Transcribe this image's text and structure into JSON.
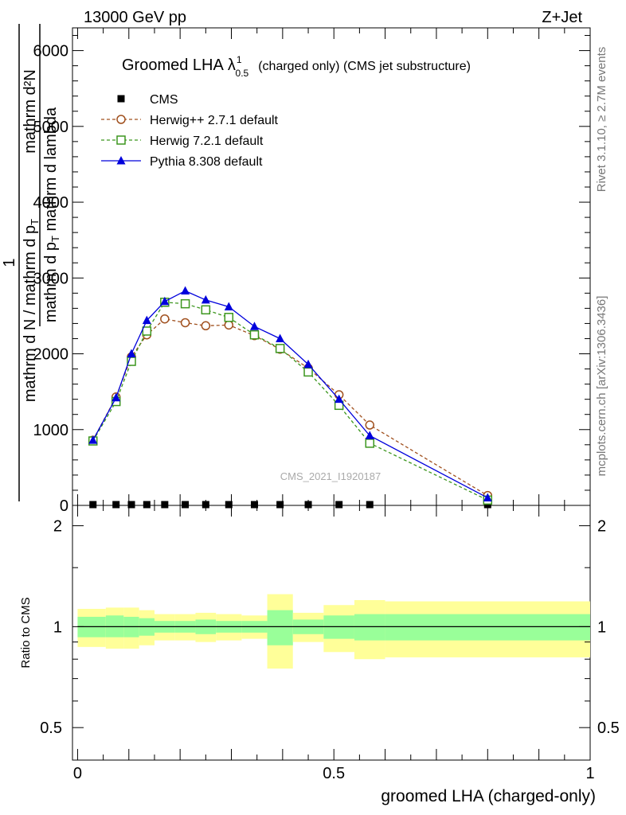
{
  "header": {
    "left_label": "13000 GeV pp",
    "right_label": "Z+Jet"
  },
  "side_labels": {
    "rivet": "Rivet 3.1.10, ≥ 2.7M events",
    "mcplots": "mcplots.cern.ch [arXiv:1306.3436]"
  },
  "chart_data": [
    {
      "type": "line",
      "title": "Groomed LHA",
      "title_symbol": "λ",
      "title_sup": "1",
      "title_sub": "0.5",
      "title_suffix": "(charged only) (CMS jet substructure)",
      "ylabel_top": "1",
      "ylabel_num": "mathrm d²N",
      "ylabel_den": "mathrm d N / mathrm d p",
      "ylabel_den_sub": "T",
      "ylabel_den2": " mathrm d p",
      "ylabel_den2_sub": "T",
      "ylabel_den3": " mathrm d lambda",
      "watermark": "CMS_2021_I1920187",
      "ylim": [
        0,
        6300
      ],
      "xlim": [
        -0.01,
        1.0
      ],
      "y_ticks": [
        0,
        1000,
        2000,
        3000,
        4000,
        5000,
        6000
      ],
      "y_tick_labels": [
        "0",
        "1000",
        "2000",
        "3000",
        "4000",
        "5000",
        "6000"
      ],
      "legend_position": "top-left",
      "x": [
        0.03,
        0.075,
        0.105,
        0.135,
        0.17,
        0.21,
        0.25,
        0.295,
        0.345,
        0.395,
        0.45,
        0.51,
        0.57,
        0.8
      ],
      "series": [
        {
          "name": "CMS",
          "color": "#000000",
          "marker": "square-filled",
          "line": "none",
          "values": [
            0,
            0,
            0,
            0,
            0,
            0,
            0,
            0,
            0,
            0,
            0,
            0,
            0,
            0
          ]
        },
        {
          "name": "Herwig++ 2.7.1 default",
          "color": "#a0501e",
          "marker": "circle-open",
          "line": "dashed",
          "values": [
            860,
            1430,
            1960,
            2250,
            2460,
            2410,
            2370,
            2380,
            2240,
            2060,
            1810,
            1460,
            1060,
            130
          ]
        },
        {
          "name": "Herwig 7.2.1 default",
          "color": "#3c961e",
          "marker": "square-open",
          "line": "dashed",
          "values": [
            850,
            1370,
            1900,
            2300,
            2680,
            2660,
            2580,
            2480,
            2250,
            2070,
            1760,
            1320,
            820,
            70
          ]
        },
        {
          "name": "Pythia 8.308 default",
          "color": "#0000dc",
          "marker": "triangle-filled",
          "line": "solid",
          "values": [
            860,
            1420,
            2000,
            2440,
            2690,
            2830,
            2710,
            2620,
            2360,
            2200,
            1860,
            1400,
            920,
            100
          ]
        }
      ]
    },
    {
      "type": "area",
      "ylabel": "Ratio to CMS",
      "xlabel": "groomed LHA (charged-only)",
      "ylim": [
        0.4,
        2.3
      ],
      "y_ticks": [
        0.5,
        1,
        2
      ],
      "y_tick_labels": [
        "0.5",
        "1",
        "2"
      ],
      "x_ticks": [
        0,
        0.5,
        1
      ],
      "x_tick_labels": [
        "0",
        "0.5",
        "1"
      ],
      "bins": [
        {
          "x0": 0.0,
          "x1": 0.055,
          "inner": [
            0.93,
            1.07
          ],
          "outer": [
            0.87,
            1.13
          ]
        },
        {
          "x0": 0.055,
          "x1": 0.09,
          "inner": [
            0.93,
            1.08
          ],
          "outer": [
            0.86,
            1.14
          ]
        },
        {
          "x0": 0.09,
          "x1": 0.12,
          "inner": [
            0.93,
            1.07
          ],
          "outer": [
            0.86,
            1.14
          ]
        },
        {
          "x0": 0.12,
          "x1": 0.15,
          "inner": [
            0.94,
            1.06
          ],
          "outer": [
            0.88,
            1.12
          ]
        },
        {
          "x0": 0.15,
          "x1": 0.19,
          "inner": [
            0.96,
            1.04
          ],
          "outer": [
            0.91,
            1.09
          ]
        },
        {
          "x0": 0.19,
          "x1": 0.23,
          "inner": [
            0.96,
            1.04
          ],
          "outer": [
            0.91,
            1.09
          ]
        },
        {
          "x0": 0.23,
          "x1": 0.27,
          "inner": [
            0.95,
            1.05
          ],
          "outer": [
            0.9,
            1.1
          ]
        },
        {
          "x0": 0.27,
          "x1": 0.32,
          "inner": [
            0.96,
            1.04
          ],
          "outer": [
            0.91,
            1.09
          ]
        },
        {
          "x0": 0.32,
          "x1": 0.37,
          "inner": [
            0.96,
            1.04
          ],
          "outer": [
            0.92,
            1.08
          ]
        },
        {
          "x0": 0.37,
          "x1": 0.42,
          "inner": [
            0.88,
            1.12
          ],
          "outer": [
            0.75,
            1.25
          ]
        },
        {
          "x0": 0.42,
          "x1": 0.48,
          "inner": [
            0.95,
            1.05
          ],
          "outer": [
            0.9,
            1.1
          ]
        },
        {
          "x0": 0.48,
          "x1": 0.54,
          "inner": [
            0.92,
            1.08
          ],
          "outer": [
            0.84,
            1.16
          ]
        },
        {
          "x0": 0.54,
          "x1": 0.6,
          "inner": [
            0.91,
            1.09
          ],
          "outer": [
            0.8,
            1.2
          ]
        },
        {
          "x0": 0.6,
          "x1": 1.0,
          "inner": [
            0.91,
            1.09
          ],
          "outer": [
            0.81,
            1.19
          ]
        }
      ],
      "band_colors": {
        "inner": "#99ff99",
        "outer": "#ffff99"
      }
    }
  ]
}
